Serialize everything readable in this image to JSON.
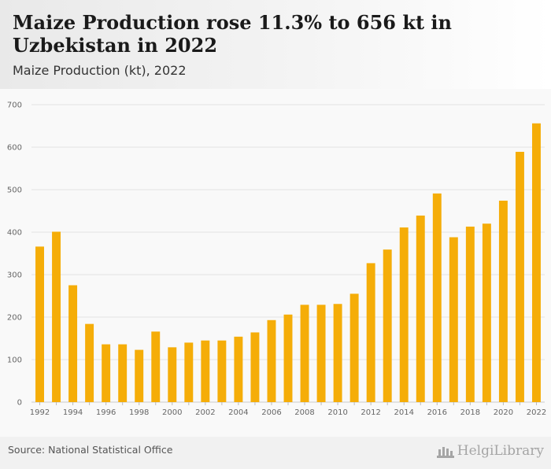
{
  "title": "Maize Production rose 11.3% to 656 kt in Uzbekistan in 2022",
  "subtitle": "Maize Production (kt), 2022",
  "source": "Source: National Statistical Office",
  "logo_text": "HelgiLibrary",
  "colors": {
    "bar": "#f5ad08",
    "grid": "#e4e4e4",
    "axis_text": "#666666"
  },
  "chart_data": {
    "type": "bar",
    "categories": [
      "1992",
      "1993",
      "1994",
      "1995",
      "1996",
      "1997",
      "1998",
      "1999",
      "2000",
      "2001",
      "2002",
      "2003",
      "2004",
      "2005",
      "2006",
      "2007",
      "2008",
      "2009",
      "2010",
      "2011",
      "2012",
      "2013",
      "2014",
      "2015",
      "2016",
      "2017",
      "2018",
      "2019",
      "2020",
      "2021",
      "2022"
    ],
    "values": [
      366,
      401,
      275,
      184,
      136,
      136,
      123,
      166,
      129,
      140,
      145,
      145,
      154,
      164,
      193,
      206,
      229,
      229,
      231,
      255,
      327,
      359,
      411,
      439,
      491,
      388,
      413,
      420,
      474,
      589,
      656
    ],
    "x_tick_labels": [
      "1992",
      "1994",
      "1996",
      "1998",
      "2000",
      "2002",
      "2004",
      "2006",
      "2008",
      "2010",
      "2012",
      "2014",
      "2016",
      "2018",
      "2020",
      "2022"
    ],
    "y_ticks": [
      0,
      100,
      200,
      300,
      400,
      500,
      600,
      700
    ],
    "ylim": [
      0,
      700
    ],
    "grid": true,
    "legend": "none",
    "xlabel": "",
    "ylabel": ""
  }
}
